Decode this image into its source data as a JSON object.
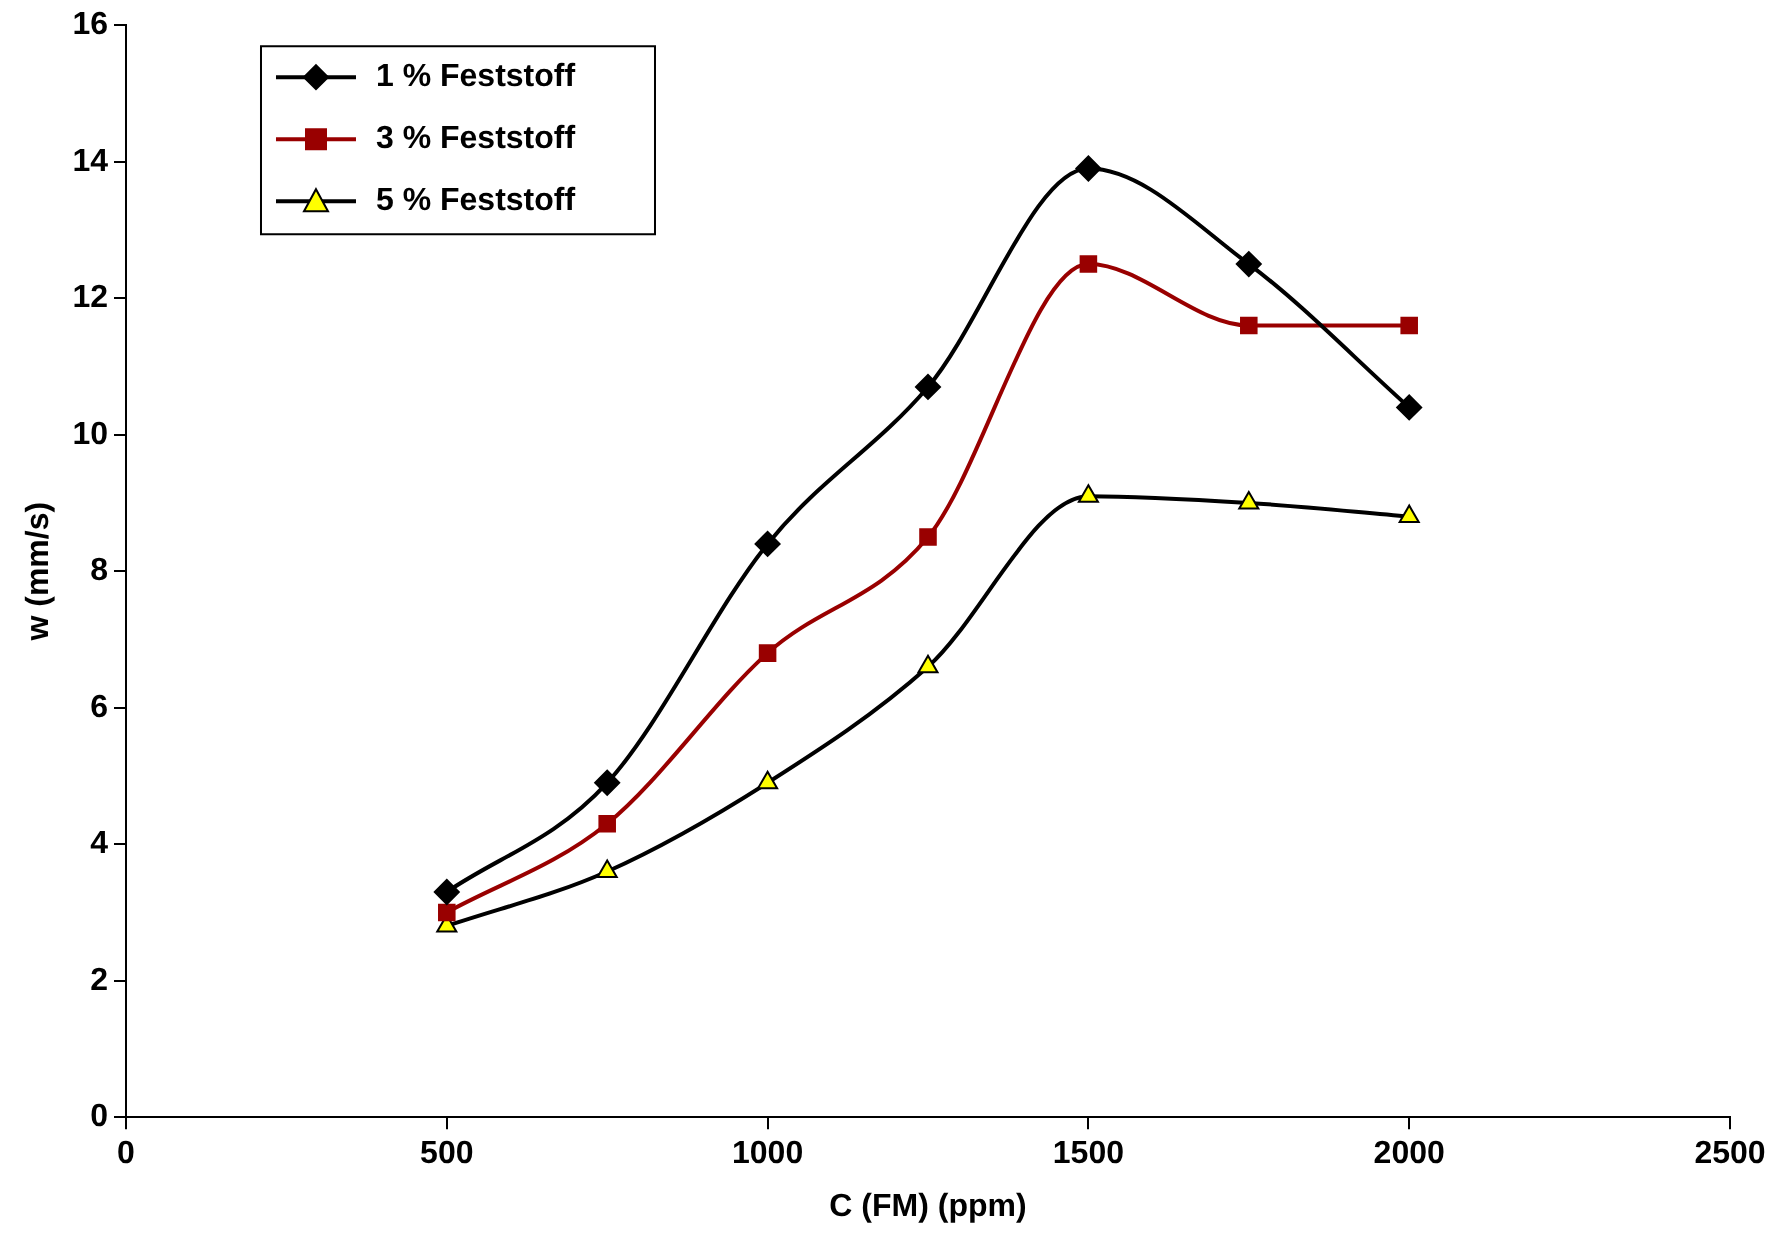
{
  "chart_data": {
    "type": "line",
    "xlabel": "C (FM) (ppm)",
    "ylabel": "w (mm/s)",
    "xlim": [
      0,
      2500
    ],
    "xticks": [
      0,
      500,
      1000,
      1500,
      2000,
      2500
    ],
    "ylim": [
      0,
      16
    ],
    "yticks": [
      0,
      2,
      4,
      6,
      8,
      10,
      12,
      14,
      16
    ],
    "grid": false,
    "legend": "top left",
    "line_style": "solid",
    "x": [
      500,
      750,
      1000,
      1250,
      1500,
      1750,
      2000
    ],
    "series": [
      {
        "name": "1 % Feststoff",
        "color": "#000000",
        "marker": "diamond",
        "values": [
          3.3,
          4.9,
          8.4,
          10.7,
          13.9,
          12.5,
          10.4
        ]
      },
      {
        "name": "3 % Feststoff",
        "color": "#990000",
        "marker": "square",
        "values": [
          3.0,
          4.3,
          6.8,
          8.5,
          12.5,
          11.6,
          11.6
        ]
      },
      {
        "name": "5 % Feststoff",
        "color": "#000000",
        "colors": [
          "#ffff00",
          "#ffff00",
          "#ffff00",
          "#ffff00",
          "#ffff00",
          "#ffff00",
          "#ffff00"
        ],
        "marker": "triangle",
        "values": [
          2.8,
          3.6,
          4.9,
          6.6,
          9.1,
          9.0,
          8.8
        ]
      }
    ]
  }
}
